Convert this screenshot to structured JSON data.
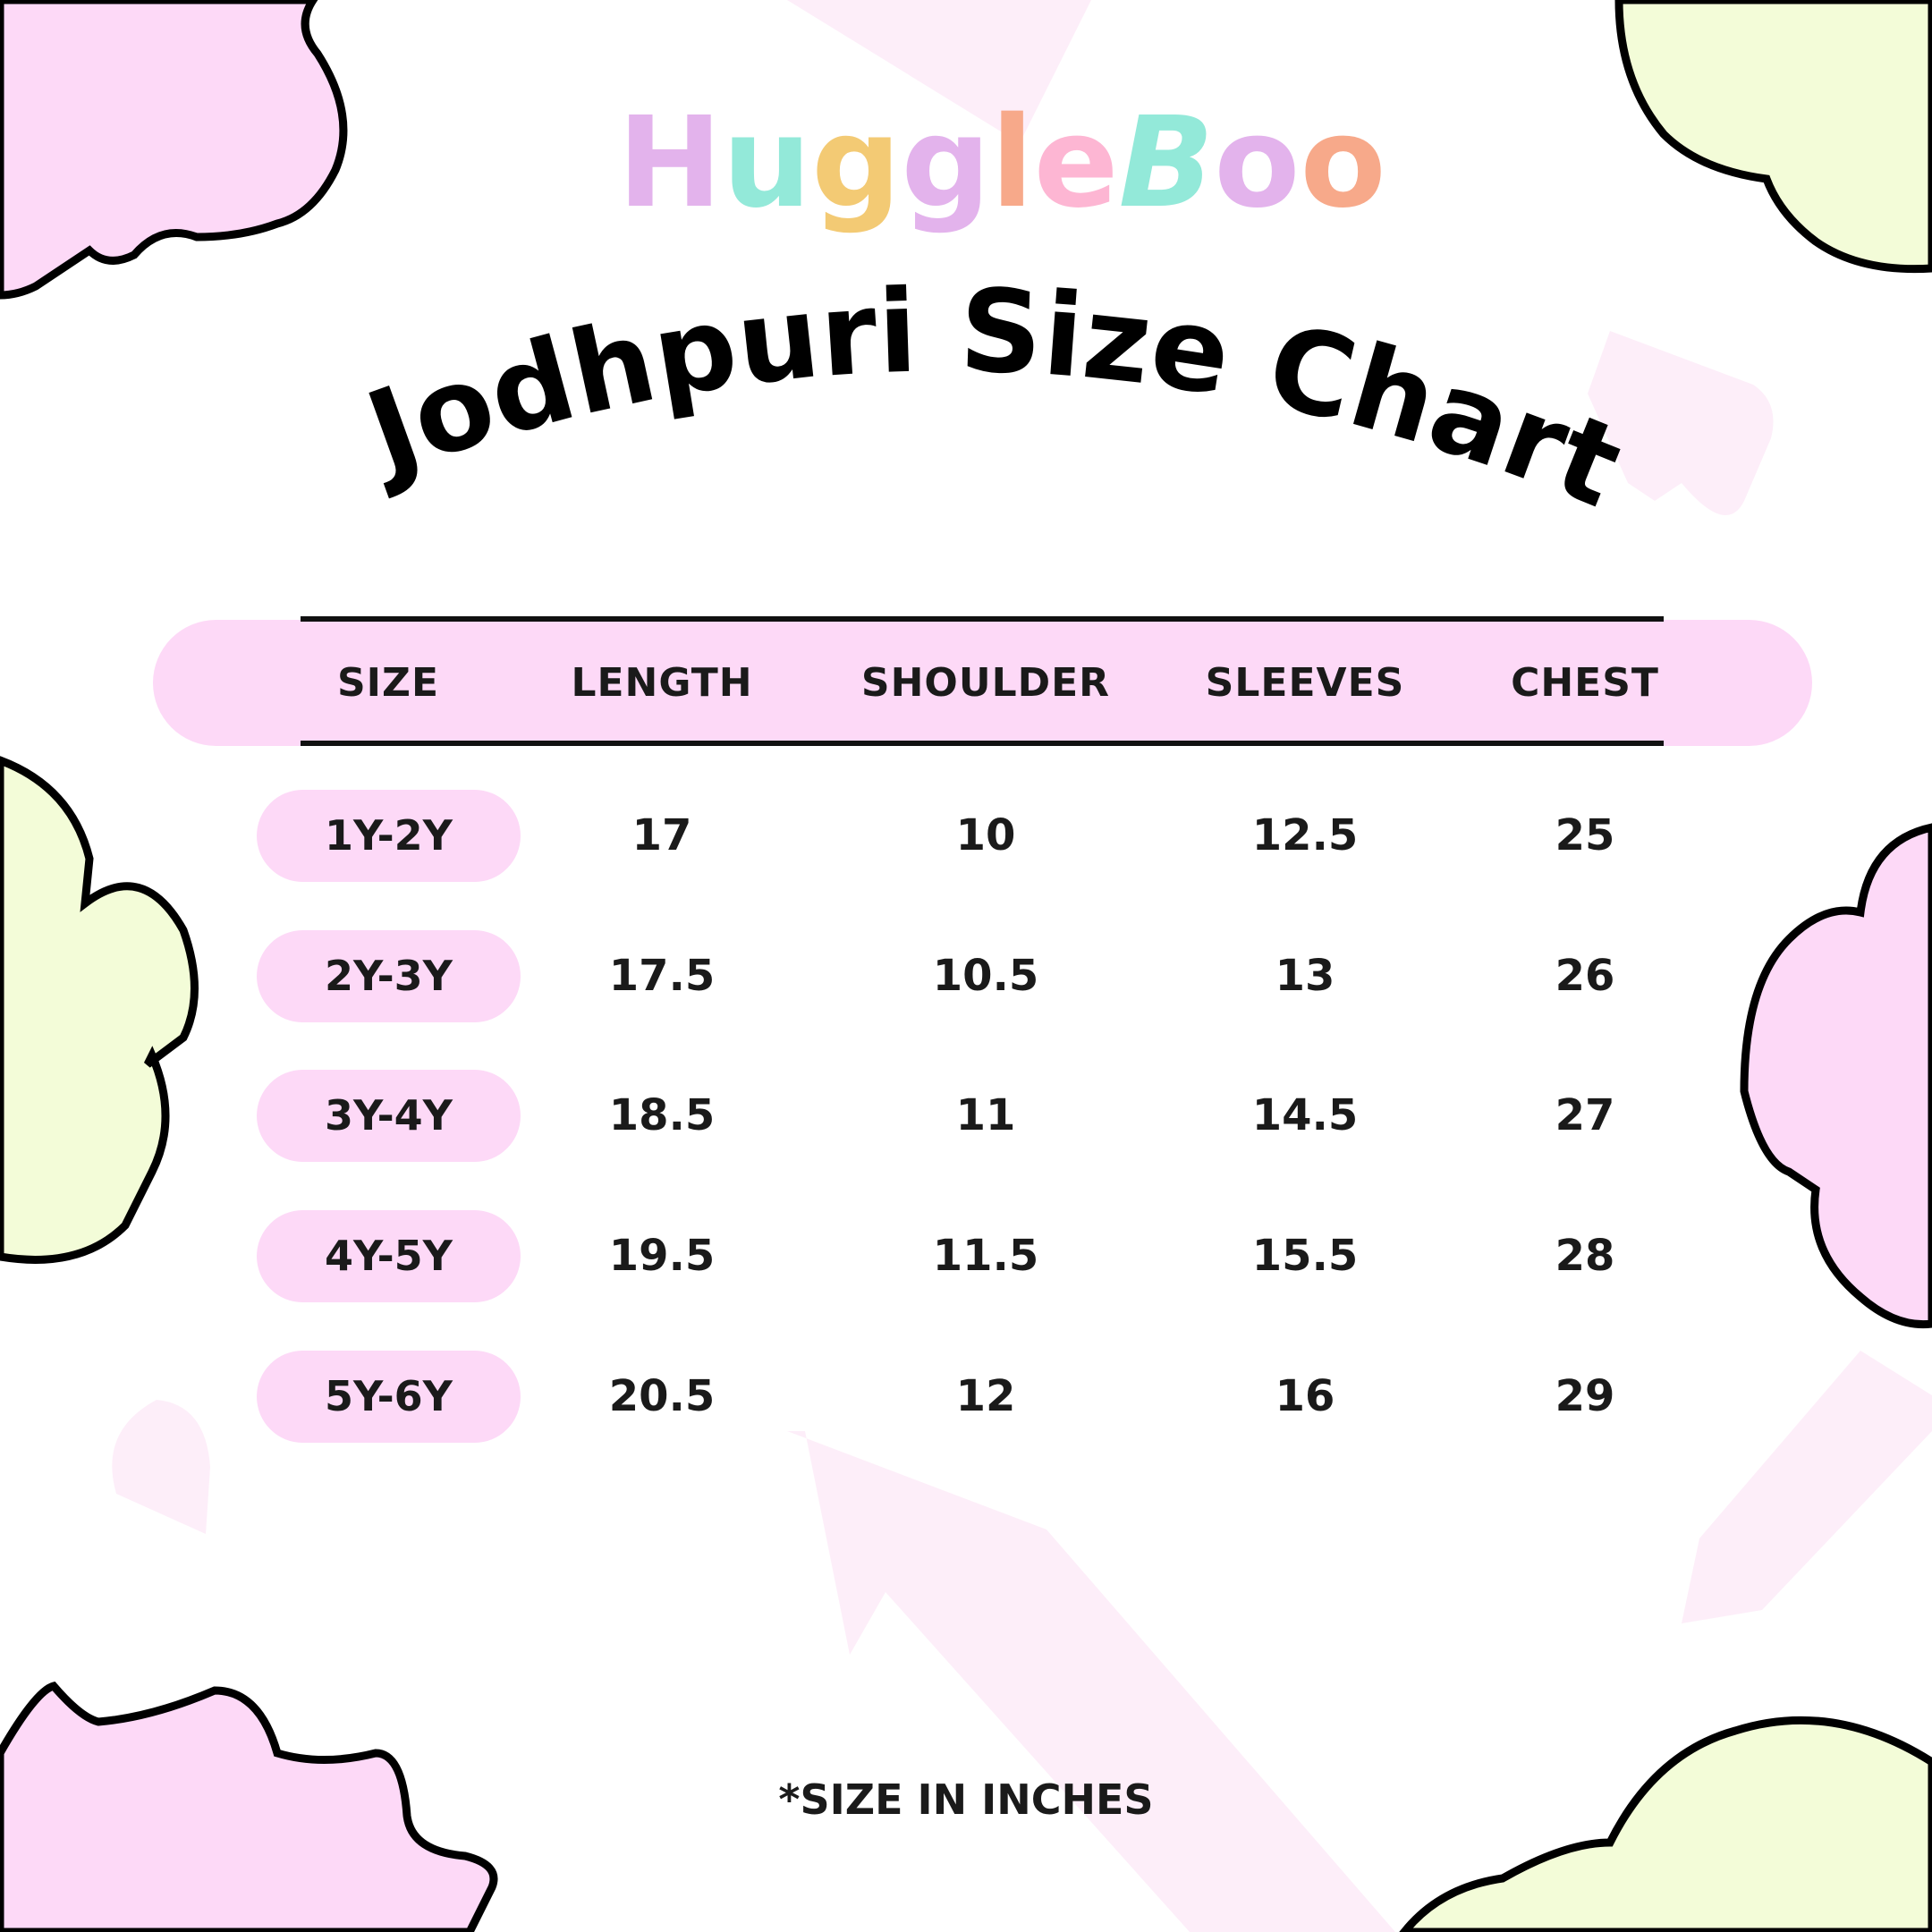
{
  "brand": {
    "logo_text": "HuggleBoo",
    "colors": [
      "#e3b3ec",
      "#93e9d9",
      "#f3ca74",
      "#f7a98a",
      "#fdb6d3"
    ]
  },
  "title": "Jodhpuri Size Chart",
  "table": {
    "headers": [
      "SIZE",
      "LENGTH",
      "SHOULDER",
      "SLEEVES",
      "CHEST"
    ],
    "rows": [
      [
        "1Y-2Y",
        "17",
        "10",
        "12.5",
        "25"
      ],
      [
        "2Y-3Y",
        "17.5",
        "10.5",
        "13",
        "26"
      ],
      [
        "3Y-4Y",
        "18.5",
        "11",
        "14.5",
        "27"
      ],
      [
        "4Y-5Y",
        "19.5",
        "11.5",
        "15.5",
        "28"
      ],
      [
        "5Y-6Y",
        "20.5",
        "12",
        "16",
        "29"
      ]
    ]
  },
  "footnote": "*SIZE IN INCHES",
  "colors": {
    "pink": "#fdd9f7",
    "lime": "#f3fcd8",
    "ink": "#111111"
  }
}
